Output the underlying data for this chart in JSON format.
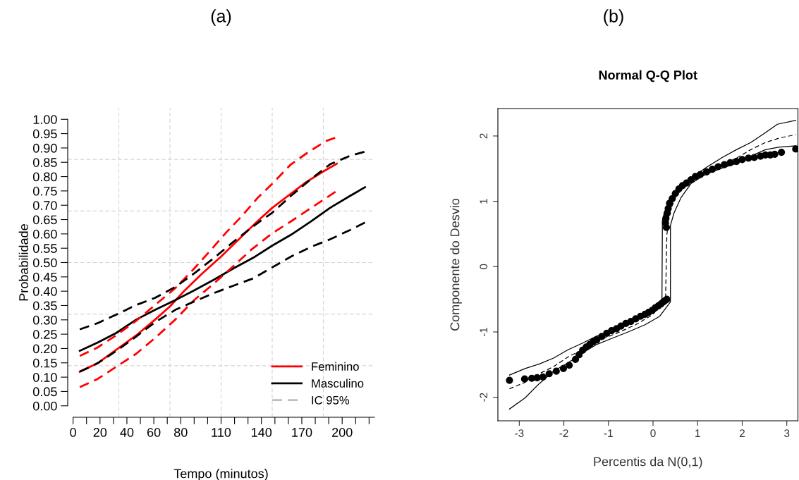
{
  "chart_data": [
    {
      "type": "line",
      "title": "(a)",
      "xlabel": "Tempo (minutos)",
      "ylabel": "Probabilidade",
      "xlim": [
        -4,
        224
      ],
      "ylim": [
        -0.04,
        1.04
      ],
      "xticks": [
        0,
        {
          "value": 10,
          "label": null
        },
        20,
        {
          "value": 30,
          "label": null
        },
        40,
        {
          "value": 50,
          "label": null
        },
        60,
        {
          "value": 70,
          "label": null
        },
        80,
        {
          "value": 90,
          "label": null
        },
        {
          "value": 100,
          "label": null
        },
        110,
        {
          "value": 120,
          "label": null
        },
        {
          "value": 130,
          "label": null
        },
        140,
        {
          "value": 150,
          "label": null
        },
        {
          "value": 160,
          "label": null
        },
        170,
        {
          "value": 180,
          "label": null
        },
        {
          "value": 190,
          "label": null
        },
        200,
        {
          "value": 210,
          "label": null
        },
        {
          "value": 220,
          "label": null
        }
      ],
      "yticks": [
        {
          "value": 0,
          "label": "0.00"
        },
        {
          "value": 0.05,
          "label": "0.05"
        },
        {
          "value": 0.1,
          "label": "0.10"
        },
        {
          "value": 0.15,
          "label": "0.15"
        },
        {
          "value": 0.2,
          "label": "0.20"
        },
        {
          "value": 0.25,
          "label": "0.25"
        },
        {
          "value": 0.3,
          "label": "0.30"
        },
        {
          "value": 0.35,
          "label": "0.35"
        },
        {
          "value": 0.4,
          "label": "0.40"
        },
        {
          "value": 0.45,
          "label": "0.45"
        },
        {
          "value": 0.5,
          "label": "0.50"
        },
        {
          "value": 0.55,
          "label": "0.55"
        },
        {
          "value": 0.6,
          "label": "0.60"
        },
        {
          "value": 0.65,
          "label": "0.65"
        },
        {
          "value": 0.7,
          "label": "0.70"
        },
        {
          "value": 0.75,
          "label": "0.75"
        },
        {
          "value": 0.8,
          "label": "0.80"
        },
        {
          "value": 0.85,
          "label": "0.85"
        },
        {
          "value": 0.9,
          "label": "0.90"
        },
        {
          "value": 0.95,
          "label": "0.95"
        },
        {
          "value": 1,
          "label": "1.00"
        }
      ],
      "legend": "bottom right",
      "marker": "none",
      "ref_lines": [
        {
          "axis": "x",
          "value": 34,
          "color": "#d3d3d3",
          "line_style": "dashed"
        },
        {
          "axis": "x",
          "value": 72,
          "color": "#d3d3d3",
          "line_style": "dashed"
        },
        {
          "axis": "x",
          "value": 110,
          "color": "#d3d3d3",
          "line_style": "dashed"
        },
        {
          "axis": "x",
          "value": 148,
          "color": "#d3d3d3",
          "line_style": "dashed"
        },
        {
          "axis": "x",
          "value": 186,
          "color": "#d3d3d3",
          "line_style": "dashed"
        },
        {
          "axis": "y",
          "value": 0.14,
          "color": "#d3d3d3",
          "line_style": "dashed"
        },
        {
          "axis": "y",
          "value": 0.32,
          "color": "#d3d3d3",
          "line_style": "dashed"
        },
        {
          "axis": "y",
          "value": 0.5,
          "color": "#d3d3d3",
          "line_style": "dashed"
        },
        {
          "axis": "y",
          "value": 0.68,
          "color": "#d3d3d3",
          "line_style": "dashed"
        },
        {
          "axis": "y",
          "value": 0.86,
          "color": "#d3d3d3",
          "line_style": "dashed"
        }
      ],
      "series": [
        {
          "name": "Feminino",
          "color": "#ff0000",
          "line_style": "solid",
          "x": [
            5,
            18,
            32,
            47,
            61,
            72,
            83,
            96,
            110,
            124,
            137,
            148,
            161,
            173,
            186,
            196
          ],
          "values": [
            0.119,
            0.148,
            0.195,
            0.246,
            0.301,
            0.347,
            0.403,
            0.462,
            0.521,
            0.585,
            0.644,
            0.691,
            0.737,
            0.78,
            0.818,
            0.845
          ]
        },
        {
          "name": "Masculino",
          "color": "#000000",
          "line_style": "solid",
          "x": [
            5,
            18,
            32,
            47,
            61,
            76,
            90,
            105,
            119,
            134,
            148,
            162,
            177,
            191,
            206,
            217
          ],
          "values": [
            0.192,
            0.22,
            0.254,
            0.301,
            0.335,
            0.369,
            0.403,
            0.441,
            0.479,
            0.517,
            0.559,
            0.597,
            0.644,
            0.691,
            0.733,
            0.763
          ]
        },
        {
          "name": "IC 95%",
          "color": "#bebebe",
          "line_style": "dashed",
          "values": [
            null
          ]
        },
        {
          "color": "#ff0000",
          "line_style": "dashed",
          "x": [
            5,
            18,
            32,
            47,
            61,
            76,
            90,
            103,
            114,
            126,
            137,
            148,
            162,
            175,
            188,
            195
          ],
          "values": [
            0.174,
            0.203,
            0.246,
            0.297,
            0.352,
            0.411,
            0.479,
            0.547,
            0.606,
            0.665,
            0.725,
            0.775,
            0.843,
            0.886,
            0.924,
            0.936
          ]
        },
        {
          "color": "#ff0000",
          "line_style": "dashed",
          "x": [
            5,
            18,
            32,
            47,
            61,
            76,
            90,
            105,
            119,
            133,
            148,
            162,
            177,
            196
          ],
          "values": [
            0.065,
            0.093,
            0.136,
            0.182,
            0.237,
            0.301,
            0.369,
            0.428,
            0.487,
            0.547,
            0.602,
            0.644,
            0.691,
            0.75
          ]
        },
        {
          "color": "#000000",
          "line_style": "dashed",
          "x": [
            5,
            18,
            32,
            47,
            61,
            76,
            90,
            105,
            119,
            134,
            148,
            162,
            177,
            191,
            206,
            217
          ],
          "values": [
            0.267,
            0.288,
            0.318,
            0.352,
            0.377,
            0.415,
            0.462,
            0.517,
            0.572,
            0.627,
            0.674,
            0.733,
            0.792,
            0.843,
            0.873,
            0.887
          ]
        },
        {
          "color": "#000000",
          "line_style": "dashed",
          "x": [
            5,
            18,
            32,
            47,
            61,
            76,
            90,
            105,
            119,
            134,
            148,
            162,
            177,
            191,
            206,
            217
          ],
          "values": [
            0.119,
            0.148,
            0.191,
            0.242,
            0.292,
            0.335,
            0.364,
            0.394,
            0.419,
            0.445,
            0.483,
            0.521,
            0.555,
            0.581,
            0.614,
            0.64
          ]
        }
      ]
    },
    {
      "type": "scatter",
      "title": "(b)",
      "subtitle": "Normal Q-Q Plot",
      "xlabel": "Percentis da N(0,1)",
      "ylabel": "Componente do Desvio",
      "xlim": [
        -3.48,
        3.25
      ],
      "ylim": [
        -2.36,
        2.42
      ],
      "xticks": [
        -3,
        -2,
        -1,
        0,
        1,
        2,
        3
      ],
      "yticks": [
        -2,
        -1,
        0,
        1,
        2
      ],
      "legend": false,
      "series": [
        {
          "type": "line",
          "color": "#000000",
          "line_style": "solid",
          "marker": "none",
          "x": [
            -3.22,
            -2.87,
            -2.55,
            -2.23,
            -1.9,
            -1.58,
            -1.26,
            -0.93,
            -0.56,
            -0.18,
            0.04,
            0.2,
            0.21,
            0.25,
            0.31,
            0.42,
            0.63,
            0.9,
            1.22,
            1.55,
            1.87,
            2.19,
            2.52,
            2.79,
            3.2
          ],
          "values": [
            -1.66,
            -1.56,
            -1.49,
            -1.4,
            -1.27,
            -1.17,
            -1.06,
            -0.99,
            -0.89,
            -0.76,
            -0.67,
            -0.52,
            0.71,
            0.82,
            0.93,
            1.06,
            1.21,
            1.38,
            1.53,
            1.67,
            1.79,
            1.9,
            2.05,
            2.18,
            2.24
          ]
        },
        {
          "type": "line",
          "color": "#000000",
          "line_style": "solid",
          "marker": "none",
          "x": [
            -3.22,
            -2.87,
            -2.55,
            -2.23,
            -1.9,
            -1.58,
            -1.26,
            -0.93,
            -0.56,
            -0.18,
            0.15,
            0.39,
            0.39,
            0.47,
            0.63,
            0.85,
            1.17,
            1.55,
            1.87,
            2.19,
            2.52,
            2.84,
            3.2
          ],
          "values": [
            -2.18,
            -2.01,
            -1.79,
            -1.6,
            -1.47,
            -1.32,
            -1.19,
            -1.1,
            -1.0,
            -0.89,
            -0.76,
            -0.54,
            0.63,
            0.82,
            1.06,
            1.27,
            1.41,
            1.51,
            1.58,
            1.69,
            1.79,
            1.83,
            1.85
          ]
        },
        {
          "type": "line",
          "color": "#000000",
          "line_style": "dashed",
          "marker": "none",
          "x": [
            -3.22,
            -2.87,
            -2.55,
            -2.23,
            -1.9,
            -1.58,
            -1.26,
            -0.82,
            -0.39,
            -0.02,
            0.28,
            0.31,
            0.36,
            0.52,
            0.79,
            1.12,
            1.55,
            1.87,
            2.19,
            2.52,
            2.84,
            3.2
          ],
          "values": [
            -1.87,
            -1.77,
            -1.64,
            -1.53,
            -1.38,
            -1.27,
            -1.14,
            -1.02,
            -0.89,
            -0.74,
            -0.52,
            0.48,
            0.82,
            1.08,
            1.3,
            1.45,
            1.56,
            1.66,
            1.79,
            1.9,
            1.97,
            2.02
          ]
        },
        {
          "type": "scatter",
          "color": "#000000",
          "marker": "circle",
          "x": [
            -3.22,
            -2.88,
            -2.72,
            -2.6,
            -2.47,
            -2.33,
            -2.17,
            -2.01,
            -1.88,
            -1.74,
            -1.66,
            -1.58,
            -1.5,
            -1.42,
            -1.34,
            -1.26,
            -1.15,
            -1.04,
            -0.93,
            -0.82,
            -0.72,
            -0.61,
            -0.5,
            -0.39,
            -0.28,
            -0.18,
            -0.1,
            -0.02,
            0.05,
            0.12,
            0.18,
            0.23,
            0.27,
            0.31,
            0.3,
            0.28,
            0.29,
            0.32,
            0.34,
            0.37,
            0.43,
            0.5,
            0.58,
            0.66,
            0.75,
            0.85,
            0.95,
            1.06,
            1.2,
            1.33,
            1.46,
            1.6,
            1.73,
            1.87,
            2.0,
            2.14,
            2.27,
            2.41,
            2.52,
            2.63,
            2.73,
            2.88,
            3.2
          ],
          "values": [
            -1.74,
            -1.72,
            -1.71,
            -1.7,
            -1.69,
            -1.64,
            -1.6,
            -1.56,
            -1.51,
            -1.42,
            -1.35,
            -1.28,
            -1.23,
            -1.19,
            -1.15,
            -1.12,
            -1.07,
            -1.02,
            -0.98,
            -0.95,
            -0.91,
            -0.87,
            -0.84,
            -0.8,
            -0.76,
            -0.73,
            -0.7,
            -0.67,
            -0.63,
            -0.6,
            -0.57,
            -0.54,
            -0.52,
            -0.5,
            0.6,
            0.67,
            0.74,
            0.82,
            0.89,
            0.97,
            1.04,
            1.12,
            1.19,
            1.24,
            1.28,
            1.33,
            1.38,
            1.41,
            1.45,
            1.49,
            1.53,
            1.56,
            1.59,
            1.61,
            1.64,
            1.66,
            1.67,
            1.69,
            1.71,
            1.71,
            1.72,
            1.75,
            1.8
          ]
        }
      ]
    }
  ]
}
